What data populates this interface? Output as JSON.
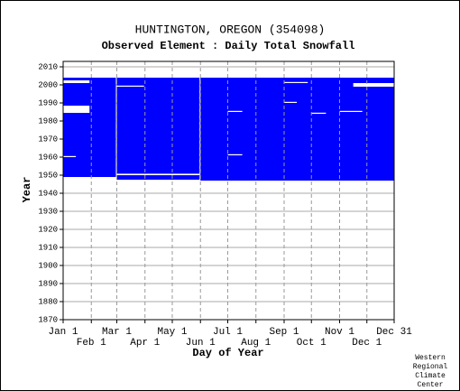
{
  "chart_data": {
    "type": "availability",
    "title": "HUNTINGTON, OREGON   (354098)",
    "subtitle": "Observed Element : Daily Total Snowfall",
    "x_label": "Day of Year",
    "y_label": "Year",
    "credit": [
      "Western",
      "Regional",
      "Climate",
      "Center"
    ],
    "xlim": [
      1,
      365
    ],
    "ylim": [
      1870,
      2013
    ],
    "xticks": [
      {
        "value": 1,
        "label": "Jan 1"
      },
      {
        "value": 32,
        "label": "Feb 1"
      },
      {
        "value": 60,
        "label": "Mar 1"
      },
      {
        "value": 91,
        "label": "Apr 1"
      },
      {
        "value": 121,
        "label": "May 1"
      },
      {
        "value": 152,
        "label": "Jun 1"
      },
      {
        "value": 182,
        "label": "Jul 1"
      },
      {
        "value": 213,
        "label": "Aug 1"
      },
      {
        "value": 244,
        "label": "Sep 1"
      },
      {
        "value": 274,
        "label": "Oct 1"
      },
      {
        "value": 305,
        "label": "Nov 1"
      },
      {
        "value": 335,
        "label": "Dec 1"
      },
      {
        "value": 365,
        "label": "Dec 31"
      }
    ],
    "yticks": [
      1870,
      1880,
      1890,
      1900,
      1910,
      1920,
      1930,
      1940,
      1950,
      1960,
      1970,
      1980,
      1990,
      2000,
      2010
    ],
    "color": "#0000ff",
    "observed_blocks": [
      {
        "days": [
          1,
          59
        ],
        "years": [
          1949,
          2004
        ]
      },
      {
        "days": [
          60,
          151
        ],
        "years": [
          1947.5,
          2004
        ]
      },
      {
        "days": [
          152,
          365
        ],
        "years": [
          1947,
          2004
        ]
      }
    ],
    "missing_blocks": [
      {
        "days": [
          1,
          30
        ],
        "years": [
          1984.5,
          1988.5
        ]
      },
      {
        "days": [
          60,
          151
        ],
        "years": [
          1950,
          1950.8
        ]
      },
      {
        "days": [
          182,
          198
        ],
        "years": [
          1985,
          1985.6
        ]
      },
      {
        "days": [
          182,
          198
        ],
        "years": [
          1961,
          1961.6
        ]
      },
      {
        "days": [
          244,
          258
        ],
        "years": [
          1990,
          1990.6
        ]
      },
      {
        "days": [
          274,
          290
        ],
        "years": [
          1984,
          1984.6
        ]
      },
      {
        "days": [
          305,
          330
        ],
        "years": [
          1985,
          1985.6
        ]
      },
      {
        "days": [
          60,
          90
        ],
        "years": [
          1999,
          1999.6
        ]
      },
      {
        "days": [
          1,
          15
        ],
        "years": [
          1960,
          1960.6
        ]
      },
      {
        "days": [
          1,
          30
        ],
        "years": [
          2001,
          2002.5
        ]
      },
      {
        "days": [
          320,
          365
        ],
        "years": [
          1999,
          2001
        ]
      },
      {
        "days": [
          244,
          270
        ],
        "years": [
          2001,
          2001.6
        ]
      }
    ]
  }
}
